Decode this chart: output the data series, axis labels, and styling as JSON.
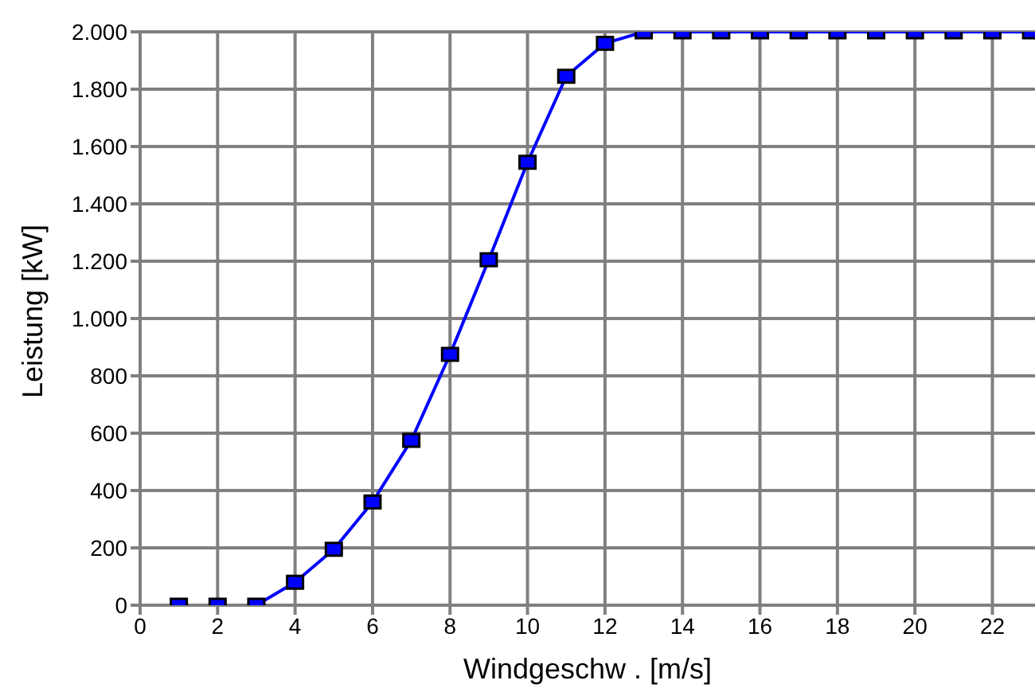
{
  "chart_data": {
    "type": "line",
    "xlabel": "Windgeschw . [m/s]",
    "ylabel": "Leistung [kW]",
    "x": [
      1,
      2,
      3,
      4,
      5,
      6,
      7,
      8,
      9,
      10,
      11,
      12,
      13,
      14,
      15,
      16,
      17,
      18,
      19,
      20,
      21,
      22,
      23
    ],
    "series": [
      {
        "color": "#0000ff",
        "values": [
          0,
          0,
          0,
          80,
          195,
          360,
          575,
          875,
          1205,
          1545,
          1845,
          1960,
          2000,
          2000,
          2000,
          2000,
          2000,
          2000,
          2000,
          2000,
          2000,
          2000,
          2000
        ]
      }
    ],
    "xlim": [
      0,
      23.1
    ],
    "xticks": [
      0,
      2,
      4,
      6,
      8,
      10,
      12,
      14,
      16,
      18,
      20,
      22
    ],
    "ylim": [
      0,
      2000
    ],
    "yticks": [
      0,
      200,
      400,
      600,
      800,
      {
        "value": 1000,
        "label": "1.000"
      },
      {
        "value": 1200,
        "label": "1.200"
      },
      {
        "value": 1400,
        "label": "1.400"
      },
      {
        "value": 1600,
        "label": "1.600"
      },
      {
        "value": 1800,
        "label": "1.800"
      },
      {
        "value": 2000,
        "label": "2.000"
      }
    ],
    "grid": true,
    "marker": "square",
    "line_style": "solid",
    "legend": false
  }
}
